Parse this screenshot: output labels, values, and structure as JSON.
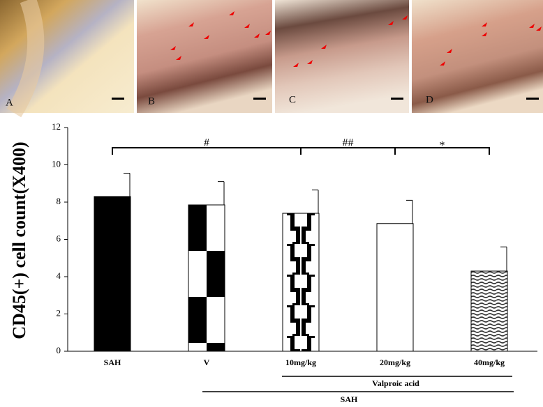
{
  "panels": [
    {
      "label": "A"
    },
    {
      "label": "B"
    },
    {
      "label": "C"
    },
    {
      "label": "D"
    }
  ],
  "chart_data": {
    "type": "bar",
    "y_label": "CD45(+) cell count(X400)",
    "categories": [
      "SAH",
      "V",
      "10mg/kg",
      "20mg/kg",
      "40mg/kg"
    ],
    "values": [
      8.3,
      7.85,
      7.4,
      6.85,
      4.3
    ],
    "errors": [
      1.25,
      1.25,
      1.25,
      1.25,
      1.3
    ],
    "ylim": [
      0,
      12
    ],
    "yticks": [
      0,
      2,
      4,
      6,
      8,
      10,
      12
    ],
    "annotations": [
      "#",
      "##",
      "*"
    ],
    "group_labels": [
      "Valproic acid",
      "SAH"
    ]
  }
}
